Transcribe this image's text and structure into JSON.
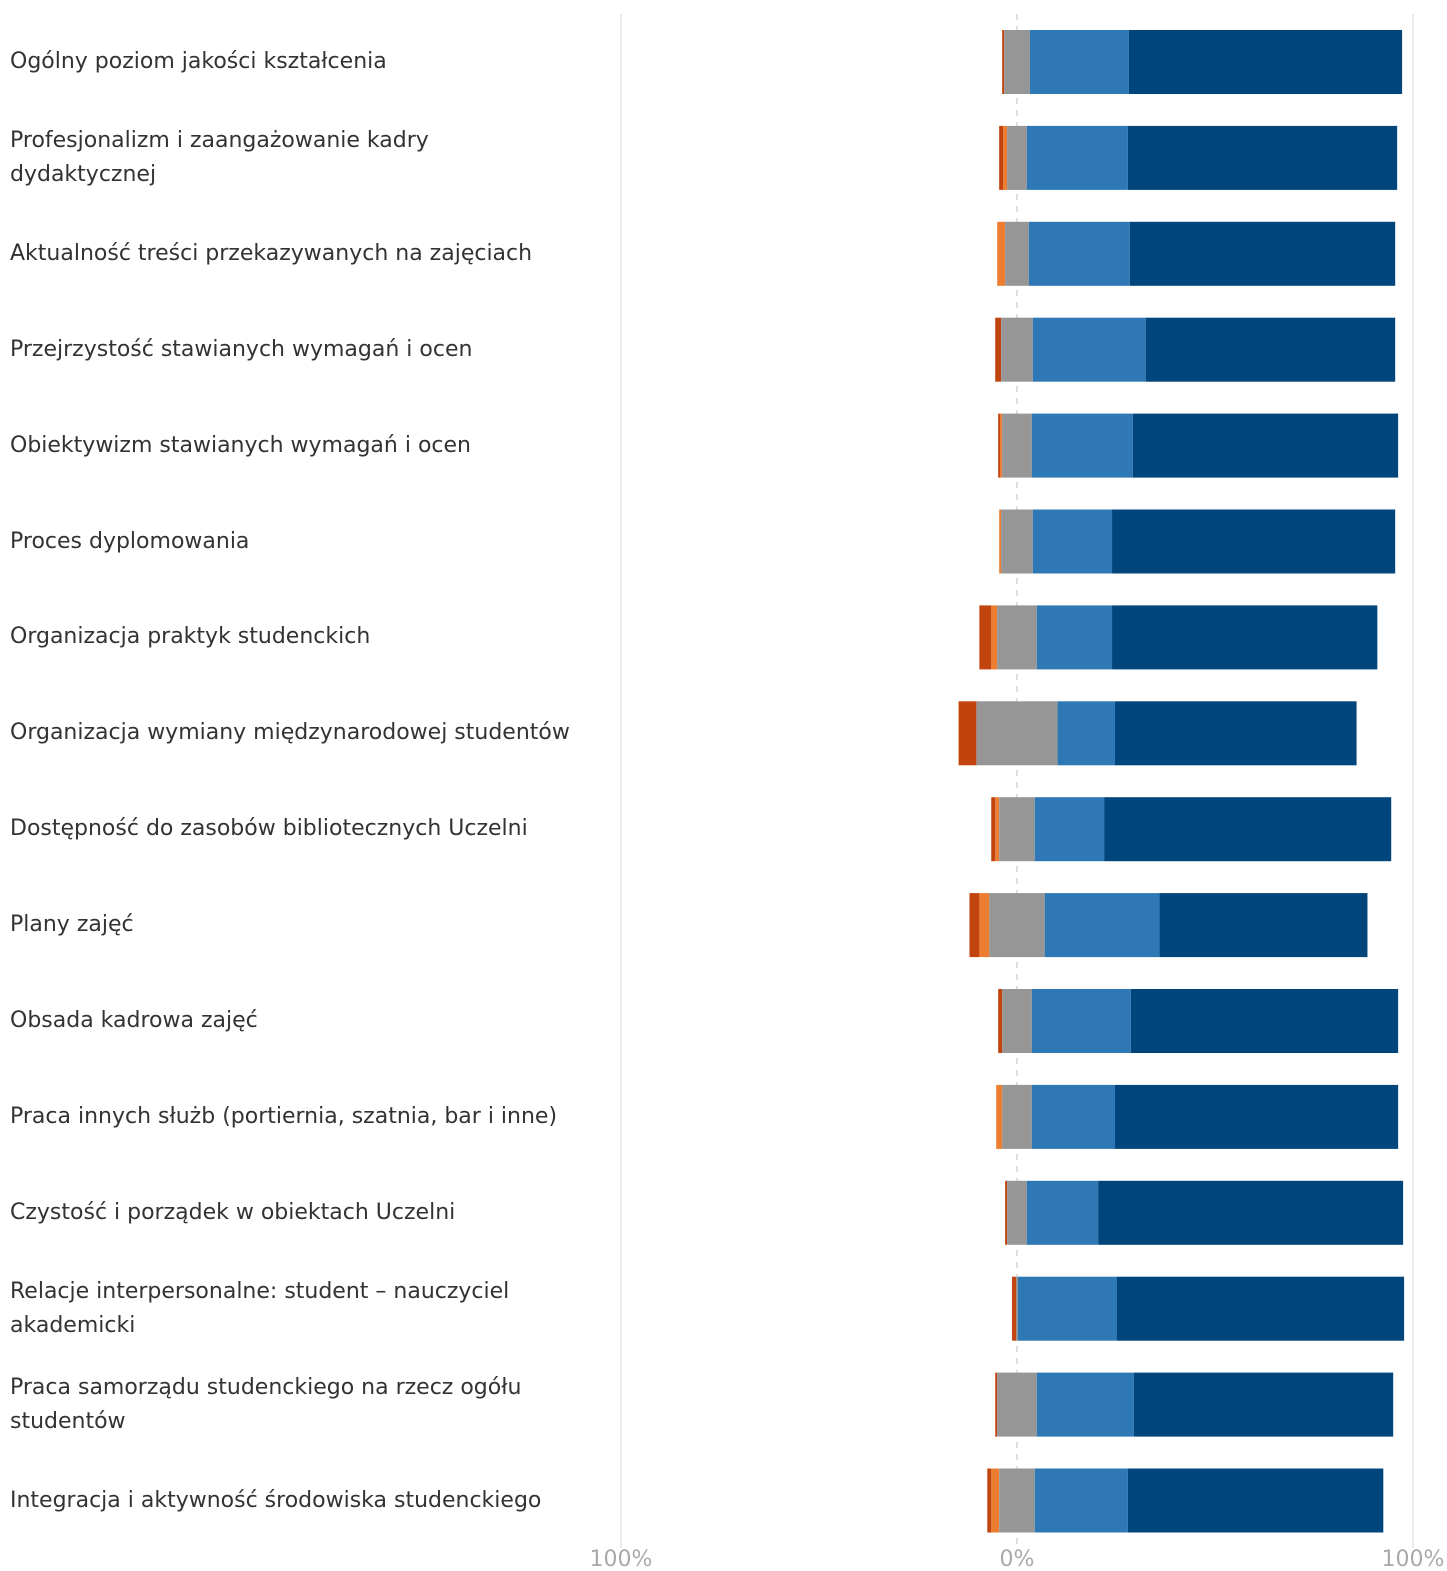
{
  "chart_data": {
    "type": "bar",
    "orientation": "horizontal",
    "stacking": "diverging",
    "categories": [
      "Ogólny poziom jakości kształcenia",
      "Profesjonalizm i zaangażowanie kadry dydaktycznej",
      "Aktualność treści przekazywanych na zajęciach",
      "Przejrzystość stawianych wymagań i ocen",
      "Obiektywizm stawianych wymagań i ocen",
      "Proces dyplomowania",
      "Organizacja praktyk studenckich",
      "Organizacja wymiany międzynarodowej studentów",
      "Dostępność do zasobów bibliotecznych Uczelni",
      "Plany zajęć",
      "Obsada kadrowa zajęć",
      "Praca innych służb (portiernia, szatnia, bar i inne)",
      "Czystość i porządek w obiektach Uczelni",
      "Relacje interpersonalne: student – nauczyciel akademicki",
      "Praca samorządu studenckiego na rzecz ogółu studentów",
      "Integracja i aktywność środowiska studenckiego"
    ],
    "series": [
      {
        "color": "#c1440e",
        "side": "negative",
        "values": [
          0.5,
          1.0,
          0.0,
          1.5,
          0.5,
          0.0,
          3.0,
          4.5,
          1.0,
          2.5,
          1.0,
          0.0,
          0.5,
          1.0,
          0.5,
          1.0
        ]
      },
      {
        "color": "#ed7d31",
        "side": "negative",
        "values": [
          0.0,
          1.0,
          2.0,
          0.0,
          0.5,
          0.5,
          1.5,
          0.0,
          1.0,
          2.5,
          0.0,
          1.5,
          0.0,
          0.0,
          0.0,
          2.0
        ]
      },
      {
        "color": "#969696",
        "side": "center",
        "values": [
          6.5,
          5.0,
          6.0,
          8.0,
          7.5,
          8.0,
          10.0,
          20.5,
          9.0,
          14.0,
          7.5,
          7.5,
          5.0,
          0.5,
          10.0,
          9.0
        ]
      },
      {
        "color": "#2e79b5",
        "side": "positive",
        "values": [
          25.0,
          25.5,
          25.5,
          28.5,
          25.5,
          20.0,
          19.0,
          14.5,
          17.5,
          29.0,
          25.0,
          21.0,
          18.0,
          25.0,
          24.5,
          23.5
        ]
      },
      {
        "color": "#00457c",
        "side": "positive",
        "values": [
          69.0,
          68.0,
          67.0,
          63.0,
          67.0,
          71.5,
          67.0,
          61.0,
          72.5,
          52.5,
          67.5,
          71.5,
          77.0,
          72.5,
          65.5,
          64.5
        ]
      }
    ],
    "xlim": [
      -100,
      100
    ],
    "x_ticks": [
      "100%",
      "0%",
      "100%"
    ],
    "grid": false
  }
}
